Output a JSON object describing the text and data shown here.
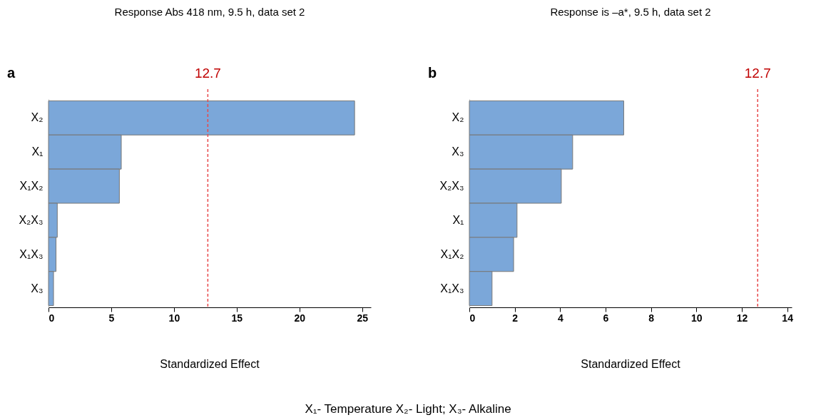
{
  "chart_data": [
    {
      "type": "bar",
      "orientation": "horizontal",
      "title": "Response Abs 418 nm, 9.5 h, data set 2",
      "xlabel": "Standardized Effect",
      "categories": [
        "X₂",
        "X₁",
        "X₁X₂",
        "X₂X₃",
        "X₁X₃",
        "X₃"
      ],
      "values": [
        24.4,
        5.8,
        5.65,
        0.7,
        0.6,
        0.4
      ],
      "color": "#7ba7d9",
      "xlim": [
        0,
        25.7
      ],
      "xticks": [
        0,
        5,
        10,
        15,
        20,
        25
      ],
      "ref_lines": [
        {
          "axis": "x",
          "value": 12.7,
          "label": "12.7",
          "color": "#e8484a",
          "line_style": "dashed"
        }
      ],
      "annotations": [
        "a",
        "X₁- Temperature X₂- Light; X₃- Alkaline"
      ]
    },
    {
      "type": "bar",
      "orientation": "horizontal",
      "title": "Response is –a*, 9.5 h, data set 2",
      "xlabel": "Standardized Effect",
      "categories": [
        "X₂",
        "X₃",
        "X₂X₃",
        "X₁",
        "X₁X₂",
        "X₁X₃"
      ],
      "values": [
        6.8,
        4.55,
        4.05,
        2.1,
        1.95,
        1.0
      ],
      "color": "#7ba7d9",
      "xlim": [
        0,
        14.2
      ],
      "xticks": [
        0,
        2,
        4,
        6,
        8,
        10,
        12,
        14
      ],
      "ref_lines": [
        {
          "axis": "x",
          "value": 12.7,
          "label": "12.7",
          "color": "#e8484a",
          "line_style": "dashed"
        }
      ],
      "annotations": [
        "b"
      ]
    }
  ]
}
